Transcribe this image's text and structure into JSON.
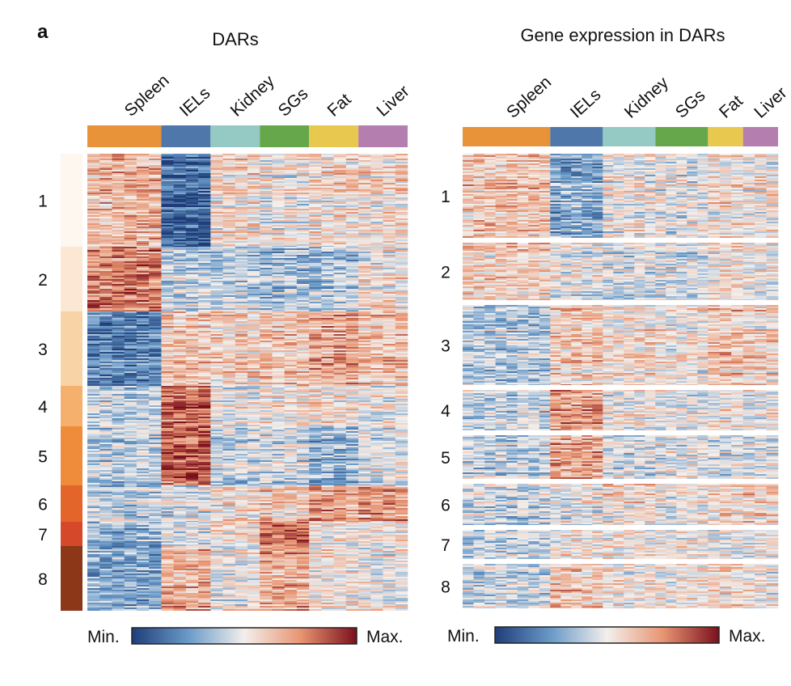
{
  "panel_label": "a",
  "chart_data": [
    {
      "type": "heatmap",
      "title": "DARs",
      "tissues": [
        "Spleen",
        "IELs",
        "Kidney",
        "SGs",
        "Fat",
        "Liver"
      ],
      "tissue_colors": [
        "#e8923a",
        "#4f77a9",
        "#95c9c4",
        "#65a74a",
        "#e8c84e",
        "#b47fae"
      ],
      "tissue_column_weights": [
        3,
        2,
        2,
        2,
        2,
        2
      ],
      "clusters": [
        "1",
        "2",
        "3",
        "4",
        "5",
        "6",
        "7",
        "8"
      ],
      "cluster_colors": [
        "#fdf7f0",
        "#fbe7d3",
        "#f8d3a6",
        "#f4b06c",
        "#ef8c3b",
        "#e3652a",
        "#d5482a",
        "#8b3718"
      ],
      "cluster_row_weights": [
        115,
        80,
        92,
        50,
        73,
        45,
        30,
        80
      ],
      "cluster_means": [
        [
          0.65,
          0.1,
          0.55,
          0.5,
          0.55,
          0.55
        ],
        [
          0.78,
          0.4,
          0.4,
          0.35,
          0.38,
          0.52
        ],
        [
          0.18,
          0.6,
          0.58,
          0.62,
          0.7,
          0.62
        ],
        [
          0.4,
          0.82,
          0.5,
          0.52,
          0.55,
          0.5
        ],
        [
          0.38,
          0.85,
          0.4,
          0.42,
          0.3,
          0.45
        ],
        [
          0.4,
          0.45,
          0.52,
          0.6,
          0.72,
          0.7
        ],
        [
          0.35,
          0.5,
          0.58,
          0.85,
          0.55,
          0.55
        ],
        [
          0.3,
          0.68,
          0.5,
          0.7,
          0.55,
          0.5
        ]
      ],
      "colorbar": {
        "min_label": "Min.",
        "max_label": "Max."
      }
    },
    {
      "type": "heatmap",
      "title": "Gene expression in DARs",
      "tissues": [
        "Spleen",
        "IELs",
        "Kidney",
        "SGs",
        "Fat",
        "Liver"
      ],
      "tissue_colors": [
        "#e8923a",
        "#4f77a9",
        "#95c9c4",
        "#65a74a",
        "#e8c84e",
        "#b47fae"
      ],
      "tissue_column_weights": [
        4,
        2.4,
        2.4,
        2.4,
        1.6,
        1.6
      ],
      "clusters": [
        "1",
        "2",
        "3",
        "4",
        "5",
        "6",
        "7",
        "8"
      ],
      "cluster_means": [
        [
          0.62,
          0.3,
          0.5,
          0.48,
          0.55,
          0.52
        ],
        [
          0.58,
          0.48,
          0.45,
          0.45,
          0.52,
          0.48
        ],
        [
          0.38,
          0.6,
          0.55,
          0.52,
          0.62,
          0.58
        ],
        [
          0.42,
          0.72,
          0.5,
          0.48,
          0.52,
          0.5
        ],
        [
          0.42,
          0.72,
          0.45,
          0.48,
          0.45,
          0.45
        ],
        [
          0.42,
          0.48,
          0.55,
          0.5,
          0.58,
          0.58
        ],
        [
          0.45,
          0.55,
          0.55,
          0.55,
          0.52,
          0.52
        ],
        [
          0.42,
          0.62,
          0.52,
          0.52,
          0.55,
          0.5
        ]
      ],
      "colorbar": {
        "min_label": "Min.",
        "max_label": "Max."
      }
    }
  ]
}
